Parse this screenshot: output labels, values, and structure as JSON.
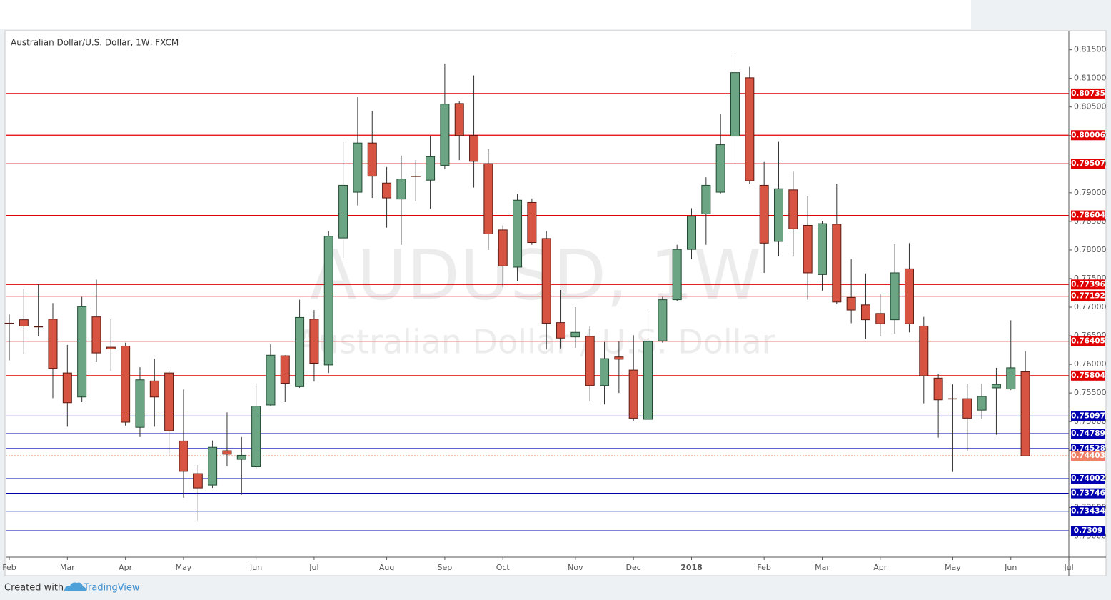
{
  "chart_data": {
    "type": "candlestick",
    "title": "Australian Dollar/U.S. Dollar, 1W, FXCM",
    "watermark": [
      "AUDUSD, 1W",
      "Australian Dollar / U.S. Dollar"
    ],
    "categories": [
      "Feb",
      null,
      null,
      null,
      "Mar",
      null,
      null,
      null,
      "Apr",
      null,
      null,
      null,
      "May",
      null,
      null,
      null,
      null,
      "Jun",
      null,
      null,
      null,
      "Jul",
      null,
      null,
      null,
      null,
      "Aug",
      null,
      null,
      null,
      "Sep",
      null,
      null,
      null,
      "Oct",
      null,
      null,
      null,
      null,
      "Nov",
      null,
      null,
      null,
      "Dec",
      null,
      null,
      null,
      "2018",
      null,
      null,
      null,
      null,
      "Feb",
      null,
      null,
      null,
      "Mar",
      null,
      null,
      null,
      "Apr",
      null,
      null,
      null,
      null,
      "May",
      null,
      null,
      null,
      "Jun",
      null,
      null,
      null,
      "Jul"
    ],
    "open": [
      0.7672,
      0.7678,
      0.7666,
      0.7679,
      0.7585,
      0.7543,
      0.7683,
      0.763,
      0.7632,
      0.749,
      0.7571,
      0.7585,
      0.7466,
      0.7409,
      0.7389,
      0.7449,
      0.7434,
      0.7421,
      0.7529,
      0.7615,
      0.7561,
      0.7679,
      0.7599,
      0.7821,
      0.7901,
      0.7987,
      0.7917,
      0.7889,
      0.7929,
      0.7922,
      0.7948,
      0.8056,
      0.8,
      0.7951,
      0.7835,
      0.777,
      0.7883,
      0.782,
      0.7673,
      0.7648,
      0.7649,
      0.7563,
      0.7613,
      0.759,
      0.7504,
      0.7641,
      0.7713,
      0.7801,
      0.7863,
      0.7901,
      0.7999,
      0.8101,
      0.7913,
      0.7815,
      0.7905,
      0.7843,
      0.7757,
      0.7845,
      0.7717,
      0.7704,
      0.7689,
      0.7678,
      0.7767,
      0.7667,
      0.7576,
      0.754,
      0.754,
      0.752,
      0.7559,
      0.7557,
      0.7587,
      null,
      null,
      null
    ],
    "high": [
      0.7687,
      0.7732,
      0.7741,
      0.7707,
      0.7634,
      0.7718,
      0.7748,
      0.7679,
      0.7638,
      0.7595,
      0.761,
      0.7589,
      0.7556,
      0.7424,
      0.7467,
      0.7516,
      0.7473,
      0.7567,
      0.7635,
      0.7616,
      0.7713,
      0.7695,
      0.7833,
      0.7989,
      0.8067,
      0.8043,
      0.7945,
      0.7965,
      0.7957,
      0.7999,
      0.8126,
      0.806,
      0.8105,
      0.7976,
      0.7843,
      0.7898,
      0.789,
      0.7833,
      0.773,
      0.77,
      0.7666,
      0.7639,
      0.764,
      0.7651,
      0.7693,
      0.7718,
      0.7809,
      0.7873,
      0.7927,
      0.8037,
      0.8138,
      0.812,
      0.7954,
      0.7989,
      0.7937,
      0.7894,
      0.7851,
      0.7916,
      0.7784,
      0.7759,
      0.7723,
      0.781,
      0.7812,
      0.7683,
      0.7583,
      0.7565,
      0.7566,
      0.7566,
      0.7594,
      0.7677,
      0.7623,
      null,
      null,
      null
    ],
    "low": [
      0.7607,
      0.7618,
      0.7649,
      0.7541,
      0.7491,
      0.7534,
      0.7604,
      0.7588,
      0.7493,
      0.7473,
      0.7491,
      0.744,
      0.7367,
      0.7327,
      0.7384,
      0.7422,
      0.7372,
      0.7418,
      0.7527,
      0.7534,
      0.7559,
      0.757,
      0.7585,
      0.7787,
      0.7878,
      0.7891,
      0.7839,
      0.7809,
      0.7885,
      0.7872,
      0.7941,
      0.7957,
      0.7909,
      0.78,
      0.7735,
      0.7746,
      0.7809,
      0.7626,
      0.7628,
      0.7629,
      0.7535,
      0.753,
      0.755,
      0.7501,
      0.7501,
      0.7638,
      0.771,
      0.7784,
      0.7809,
      0.7899,
      0.7957,
      0.7916,
      0.776,
      0.779,
      0.779,
      0.7713,
      0.7729,
      0.7705,
      0.7672,
      0.7644,
      0.765,
      0.7654,
      0.7656,
      0.7532,
      0.7472,
      0.7412,
      0.7449,
      0.7504,
      0.7477,
      0.7555,
      0.744,
      null,
      null,
      null
    ],
    "close": [
      0.7672,
      0.7667,
      0.7666,
      0.7593,
      0.7533,
      0.7701,
      0.762,
      0.7627,
      0.7499,
      0.7573,
      0.7543,
      0.7484,
      0.7413,
      0.7384,
      0.7455,
      0.7443,
      0.7441,
      0.7527,
      0.7616,
      0.7567,
      0.7682,
      0.7602,
      0.7824,
      0.7913,
      0.7987,
      0.7929,
      0.7891,
      0.7924,
      0.7929,
      0.7963,
      0.8055,
      0.8,
      0.7955,
      0.7828,
      0.7772,
      0.7887,
      0.7813,
      0.7672,
      0.7646,
      0.7656,
      0.7563,
      0.761,
      0.7609,
      0.7506,
      0.764,
      0.7713,
      0.7801,
      0.7859,
      0.7913,
      0.7984,
      0.811,
      0.7921,
      0.7812,
      0.7907,
      0.7837,
      0.776,
      0.7846,
      0.7709,
      0.7695,
      0.7678,
      0.7671,
      0.776,
      0.7671,
      0.758,
      0.7538,
      0.754,
      0.7506,
      0.7544,
      0.7565,
      0.7594,
      0.744,
      null,
      null,
      null
    ],
    "up_color": "#6ba583",
    "down_color": "#d75442",
    "ylim": [
      0.7263,
      0.8182
    ],
    "yticks": [
      {
        "value": 0.73,
        "label": "0.73000"
      },
      {
        "value": 0.735,
        "label": "0.73500"
      },
      {
        "value": 0.74,
        "label": "0.74000"
      },
      {
        "value": 0.745,
        "label": "0.74500"
      },
      {
        "value": 0.75,
        "label": "0.75000"
      },
      {
        "value": 0.755,
        "label": "0.75500"
      },
      {
        "value": 0.76,
        "label": "0.76000"
      },
      {
        "value": 0.765,
        "label": "0.76500"
      },
      {
        "value": 0.77,
        "label": "0.77000"
      },
      {
        "value": 0.775,
        "label": "0.77500"
      },
      {
        "value": 0.78,
        "label": "0.78000"
      },
      {
        "value": 0.785,
        "label": "0.78500"
      },
      {
        "value": 0.79,
        "label": "0.79000"
      },
      {
        "value": 0.795,
        "label": "0.79500"
      },
      {
        "value": 0.8,
        "label": "0.80000"
      },
      {
        "value": 0.805,
        "label": "0.80500"
      },
      {
        "value": 0.81,
        "label": "0.81000"
      },
      {
        "value": 0.815,
        "label": "0.81500"
      }
    ],
    "levels": [
      {
        "value": 0.80735,
        "color": "#e00000"
      },
      {
        "value": 0.80006,
        "color": "#e00000"
      },
      {
        "value": 0.79507,
        "color": "#e00000"
      },
      {
        "value": 0.78604,
        "color": "#e00000"
      },
      {
        "value": 0.77396,
        "color": "#e00000"
      },
      {
        "value": 0.77192,
        "color": "#e00000"
      },
      {
        "value": 0.76405,
        "color": "#e00000"
      },
      {
        "value": 0.75804,
        "color": "#e00000"
      },
      {
        "value": 0.75097,
        "color": "#0000b0"
      },
      {
        "value": 0.74789,
        "color": "#0000b0"
      },
      {
        "value": 0.74528,
        "color": "#0000b0"
      },
      {
        "value": 0.74002,
        "color": "#0000b0"
      },
      {
        "value": 0.73746,
        "color": "#0000b0"
      },
      {
        "value": 0.73434,
        "color": "#0000b0"
      },
      {
        "value": 0.7309,
        "color": "#0000b0"
      }
    ],
    "last_price": {
      "value": 0.74403,
      "color": "#ef7f66"
    }
  },
  "footer": {
    "created_with": "Created with",
    "brand": "TradingView"
  }
}
